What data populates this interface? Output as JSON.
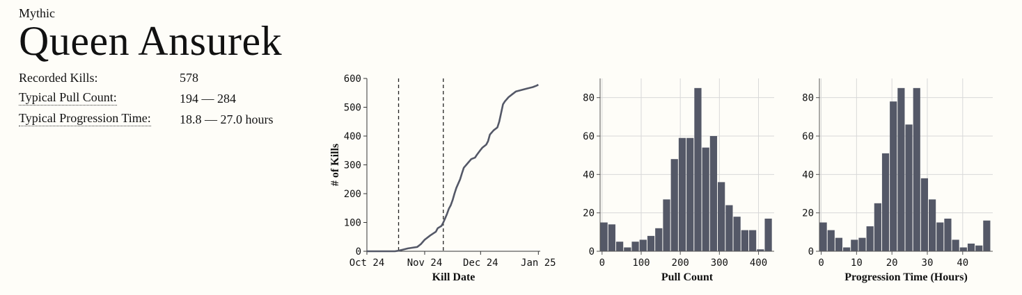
{
  "header": {
    "difficulty": "Mythic",
    "boss_name": "Queen Ansurek"
  },
  "stats": [
    {
      "label": "Recorded Kills:",
      "value": "578",
      "dotted": false
    },
    {
      "label": "Typical Pull Count:",
      "value": "194 — 284",
      "dotted": true
    },
    {
      "label": "Typical Progression Time:",
      "value": "18.8 — 27.0 hours",
      "dotted": true
    }
  ],
  "colors": {
    "bar": "#545867",
    "line": "#545867",
    "grid": "#d8d8d8",
    "background": "#fefdf8"
  },
  "chart_data": [
    {
      "type": "line",
      "xlabel": "Kill Date",
      "ylabel": "# of Kills",
      "x_ticks": [
        "Oct 24",
        "Nov 24",
        "Dec 24",
        "Jan 25"
      ],
      "y_ticks": [
        0,
        100,
        200,
        300,
        400,
        500,
        600
      ],
      "ylim": [
        0,
        600
      ],
      "xlim": [
        "2024-10-24",
        "2025-01-25"
      ],
      "vlines": [
        "2024-11-10",
        "2024-12-04"
      ],
      "grid": false,
      "x": [
        "2024-10-24",
        "2024-11-08",
        "2024-11-10",
        "2024-11-12",
        "2024-11-15",
        "2024-11-18",
        "2024-11-20",
        "2024-11-22",
        "2024-11-24",
        "2024-11-27",
        "2024-11-30",
        "2024-12-01",
        "2024-12-03",
        "2024-12-04",
        "2024-12-05",
        "2024-12-06",
        "2024-12-07",
        "2024-12-08",
        "2024-12-09",
        "2024-12-10",
        "2024-12-11",
        "2024-12-13",
        "2024-12-14",
        "2024-12-15",
        "2024-12-17",
        "2024-12-19",
        "2024-12-21",
        "2024-12-22",
        "2024-12-24",
        "2024-12-25",
        "2024-12-27",
        "2024-12-28",
        "2024-12-29",
        "2024-12-31",
        "2025-01-02",
        "2025-01-03",
        "2025-01-04",
        "2025-01-05",
        "2025-01-06",
        "2025-01-08",
        "2025-01-10",
        "2025-01-12",
        "2025-01-15",
        "2025-01-18",
        "2025-01-21",
        "2025-01-23",
        "2025-01-24"
      ],
      "y": [
        0,
        0,
        2,
        5,
        10,
        13,
        15,
        25,
        40,
        55,
        68,
        80,
        88,
        100,
        115,
        130,
        148,
        160,
        178,
        200,
        220,
        250,
        270,
        290,
        305,
        320,
        325,
        335,
        352,
        360,
        370,
        382,
        405,
        420,
        430,
        450,
        480,
        510,
        520,
        535,
        545,
        555,
        560,
        565,
        570,
        575,
        578
      ]
    },
    {
      "type": "histogram",
      "xlabel": "Pull Count",
      "x_ticks": [
        0,
        100,
        200,
        300,
        400
      ],
      "y_ticks": [
        0,
        20,
        40,
        60,
        80
      ],
      "xlim": [
        -5,
        440
      ],
      "ylim": [
        0,
        90
      ],
      "bin_start": -5,
      "bin_width": 20,
      "values": [
        15,
        14,
        5,
        2,
        5,
        6,
        8,
        12,
        27,
        48,
        59,
        59,
        85,
        54,
        60,
        36,
        24,
        18,
        11,
        11,
        1,
        17
      ]
    },
    {
      "type": "histogram",
      "xlabel": "Progression Time (Hours)",
      "x_ticks": [
        0,
        10,
        20,
        30,
        40
      ],
      "y_ticks": [
        0,
        20,
        40,
        60,
        80
      ],
      "xlim": [
        -0.5,
        48.5
      ],
      "ylim": [
        0,
        90
      ],
      "bin_start": -0.5,
      "bin_width": 2.2,
      "values": [
        15,
        11,
        7,
        2,
        6,
        7,
        13,
        25,
        51,
        78,
        85,
        66,
        85,
        38,
        27,
        15,
        17,
        6,
        2,
        4,
        3,
        16
      ]
    }
  ]
}
